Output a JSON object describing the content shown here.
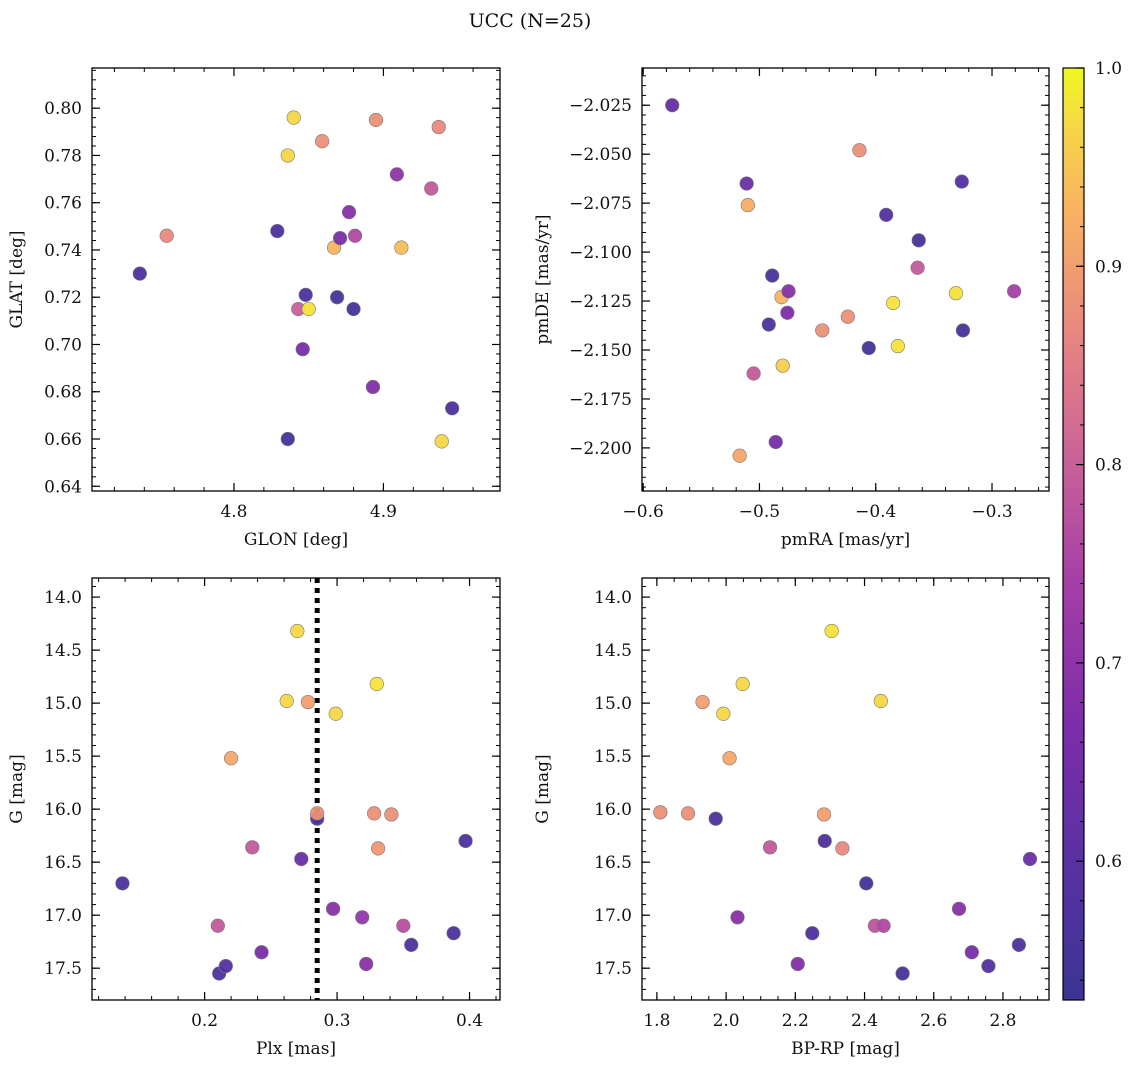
{
  "title": "UCC (N=25)",
  "colorbar": {
    "min": 0.53,
    "max": 1.0,
    "ticks": [
      "0.6",
      "0.7",
      "0.8",
      "0.9",
      "1.0"
    ],
    "colormap": "plasma"
  },
  "chart_data": [
    {
      "type": "scatter",
      "xlabel": "GLON [deg]",
      "ylabel": "GLAT [deg]",
      "xlim": [
        4.705,
        4.978
      ],
      "ylim": [
        0.638,
        0.817
      ],
      "xticks": [
        "4.8",
        "4.9"
      ],
      "yticks": [
        "0.64",
        "0.66",
        "0.68",
        "0.70",
        "0.72",
        "0.74",
        "0.76",
        "0.78",
        "0.80"
      ],
      "points": [
        {
          "x": 4.737,
          "y": 0.73,
          "c": 0.57
        },
        {
          "x": 4.755,
          "y": 0.746,
          "c": 0.87
        },
        {
          "x": 4.829,
          "y": 0.748,
          "c": 0.57
        },
        {
          "x": 4.836,
          "y": 0.66,
          "c": 0.55
        },
        {
          "x": 4.836,
          "y": 0.78,
          "c": 0.97
        },
        {
          "x": 4.84,
          "y": 0.796,
          "c": 0.97
        },
        {
          "x": 4.843,
          "y": 0.715,
          "c": 0.8
        },
        {
          "x": 4.846,
          "y": 0.698,
          "c": 0.66
        },
        {
          "x": 4.848,
          "y": 0.721,
          "c": 0.57
        },
        {
          "x": 4.85,
          "y": 0.715,
          "c": 0.98
        },
        {
          "x": 4.859,
          "y": 0.786,
          "c": 0.88
        },
        {
          "x": 4.867,
          "y": 0.741,
          "c": 0.93
        },
        {
          "x": 4.869,
          "y": 0.72,
          "c": 0.56
        },
        {
          "x": 4.871,
          "y": 0.745,
          "c": 0.66
        },
        {
          "x": 4.877,
          "y": 0.756,
          "c": 0.69
        },
        {
          "x": 4.88,
          "y": 0.715,
          "c": 0.56
        },
        {
          "x": 4.881,
          "y": 0.746,
          "c": 0.76
        },
        {
          "x": 4.893,
          "y": 0.682,
          "c": 0.68
        },
        {
          "x": 4.895,
          "y": 0.795,
          "c": 0.88
        },
        {
          "x": 4.909,
          "y": 0.772,
          "c": 0.7
        },
        {
          "x": 4.912,
          "y": 0.741,
          "c": 0.94
        },
        {
          "x": 4.932,
          "y": 0.766,
          "c": 0.79
        },
        {
          "x": 4.937,
          "y": 0.792,
          "c": 0.87
        },
        {
          "x": 4.939,
          "y": 0.659,
          "c": 0.97
        },
        {
          "x": 4.946,
          "y": 0.673,
          "c": 0.57
        }
      ]
    },
    {
      "type": "scatter",
      "xlabel": "pmRA [mas/yr]",
      "ylabel": "pmDE [mas/yr]",
      "xlim": [
        -0.601,
        -0.251
      ],
      "ylim": [
        -2.222,
        -2.006
      ],
      "xticks": [
        "−0.6",
        "−0.5",
        "−0.4",
        "−0.3"
      ],
      "yticks": [
        "−2.200",
        "−2.175",
        "−2.150",
        "−2.125",
        "−2.100",
        "−2.075",
        "−2.050",
        "−2.025"
      ],
      "points": [
        {
          "x": -0.575,
          "y": -2.025,
          "c": 0.62
        },
        {
          "x": -0.517,
          "y": -2.204,
          "c": 0.91
        },
        {
          "x": -0.511,
          "y": -2.065,
          "c": 0.63
        },
        {
          "x": -0.51,
          "y": -2.076,
          "c": 0.92
        },
        {
          "x": -0.505,
          "y": -2.162,
          "c": 0.79
        },
        {
          "x": -0.492,
          "y": -2.137,
          "c": 0.57
        },
        {
          "x": -0.489,
          "y": -2.112,
          "c": 0.56
        },
        {
          "x": -0.486,
          "y": -2.197,
          "c": 0.66
        },
        {
          "x": -0.481,
          "y": -2.123,
          "c": 0.93
        },
        {
          "x": -0.48,
          "y": -2.158,
          "c": 0.96
        },
        {
          "x": -0.476,
          "y": -2.131,
          "c": 0.67
        },
        {
          "x": -0.475,
          "y": -2.12,
          "c": 0.69
        },
        {
          "x": -0.446,
          "y": -2.14,
          "c": 0.88
        },
        {
          "x": -0.424,
          "y": -2.133,
          "c": 0.88
        },
        {
          "x": -0.414,
          "y": -2.048,
          "c": 0.88
        },
        {
          "x": -0.406,
          "y": -2.149,
          "c": 0.55
        },
        {
          "x": -0.391,
          "y": -2.081,
          "c": 0.58
        },
        {
          "x": -0.385,
          "y": -2.126,
          "c": 0.98
        },
        {
          "x": -0.381,
          "y": -2.148,
          "c": 0.98
        },
        {
          "x": -0.364,
          "y": -2.108,
          "c": 0.79
        },
        {
          "x": -0.363,
          "y": -2.094,
          "c": 0.56
        },
        {
          "x": -0.331,
          "y": -2.121,
          "c": 0.98
        },
        {
          "x": -0.326,
          "y": -2.064,
          "c": 0.58
        },
        {
          "x": -0.325,
          "y": -2.14,
          "c": 0.56
        },
        {
          "x": -0.281,
          "y": -2.12,
          "c": 0.74
        }
      ]
    },
    {
      "type": "scatter",
      "xlabel": "Plx [mas]",
      "ylabel": "G [mag]",
      "xlim": [
        0.115,
        0.423
      ],
      "ylim": [
        17.8,
        13.82
      ],
      "y_inverted": true,
      "xticks": [
        "0.2",
        "0.3",
        "0.4"
      ],
      "yticks": [
        "14.0",
        "14.5",
        "15.0",
        "15.5",
        "16.0",
        "16.5",
        "17.0",
        "17.5"
      ],
      "vline": 0.285,
      "points": [
        {
          "x": 0.138,
          "y": 16.7,
          "c": 0.57
        },
        {
          "x": 0.21,
          "y": 17.1,
          "c": 0.79
        },
        {
          "x": 0.211,
          "y": 17.55,
          "c": 0.57
        },
        {
          "x": 0.216,
          "y": 17.48,
          "c": 0.58
        },
        {
          "x": 0.22,
          "y": 15.52,
          "c": 0.91
        },
        {
          "x": 0.236,
          "y": 16.36,
          "c": 0.79
        },
        {
          "x": 0.243,
          "y": 17.35,
          "c": 0.66
        },
        {
          "x": 0.262,
          "y": 14.98,
          "c": 0.97
        },
        {
          "x": 0.27,
          "y": 14.32,
          "c": 0.97
        },
        {
          "x": 0.273,
          "y": 16.47,
          "c": 0.63
        },
        {
          "x": 0.278,
          "y": 14.99,
          "c": 0.9
        },
        {
          "x": 0.285,
          "y": 16.09,
          "c": 0.57
        },
        {
          "x": 0.285,
          "y": 16.04,
          "c": 0.88
        },
        {
          "x": 0.299,
          "y": 15.1,
          "c": 0.97
        },
        {
          "x": 0.297,
          "y": 16.94,
          "c": 0.69
        },
        {
          "x": 0.319,
          "y": 17.02,
          "c": 0.71
        },
        {
          "x": 0.322,
          "y": 17.46,
          "c": 0.69
        },
        {
          "x": 0.328,
          "y": 16.04,
          "c": 0.88
        },
        {
          "x": 0.33,
          "y": 14.82,
          "c": 0.98
        },
        {
          "x": 0.331,
          "y": 16.37,
          "c": 0.89
        },
        {
          "x": 0.341,
          "y": 16.05,
          "c": 0.88
        },
        {
          "x": 0.35,
          "y": 17.1,
          "c": 0.77
        },
        {
          "x": 0.356,
          "y": 17.28,
          "c": 0.57
        },
        {
          "x": 0.388,
          "y": 17.17,
          "c": 0.57
        },
        {
          "x": 0.397,
          "y": 16.3,
          "c": 0.57
        }
      ]
    },
    {
      "type": "scatter",
      "xlabel": "BP-RP [mag]",
      "ylabel": "G [mag]",
      "xlim": [
        1.757,
        2.933
      ],
      "ylim": [
        17.8,
        13.82
      ],
      "y_inverted": true,
      "xticks": [
        "1.8",
        "2.0",
        "2.2",
        "2.4",
        "2.6",
        "2.8"
      ],
      "yticks": [
        "14.0",
        "14.5",
        "15.0",
        "15.5",
        "16.0",
        "16.5",
        "17.0",
        "17.5"
      ],
      "points": [
        {
          "x": 1.81,
          "y": 16.03,
          "c": 0.88
        },
        {
          "x": 1.89,
          "y": 16.04,
          "c": 0.88
        },
        {
          "x": 1.932,
          "y": 14.99,
          "c": 0.9
        },
        {
          "x": 1.97,
          "y": 16.09,
          "c": 0.57
        },
        {
          "x": 1.992,
          "y": 15.1,
          "c": 0.97
        },
        {
          "x": 2.01,
          "y": 15.52,
          "c": 0.91
        },
        {
          "x": 2.033,
          "y": 17.02,
          "c": 0.69
        },
        {
          "x": 2.048,
          "y": 14.82,
          "c": 0.97
        },
        {
          "x": 2.127,
          "y": 16.36,
          "c": 0.79
        },
        {
          "x": 2.207,
          "y": 17.46,
          "c": 0.68
        },
        {
          "x": 2.249,
          "y": 17.17,
          "c": 0.57
        },
        {
          "x": 2.283,
          "y": 16.05,
          "c": 0.9
        },
        {
          "x": 2.285,
          "y": 16.3,
          "c": 0.57
        },
        {
          "x": 2.305,
          "y": 14.32,
          "c": 0.98
        },
        {
          "x": 2.336,
          "y": 16.37,
          "c": 0.87
        },
        {
          "x": 2.405,
          "y": 16.7,
          "c": 0.55
        },
        {
          "x": 2.43,
          "y": 17.1,
          "c": 0.78
        },
        {
          "x": 2.447,
          "y": 14.98,
          "c": 0.97
        },
        {
          "x": 2.455,
          "y": 17.1,
          "c": 0.76
        },
        {
          "x": 2.51,
          "y": 17.55,
          "c": 0.56
        },
        {
          "x": 2.673,
          "y": 16.94,
          "c": 0.69
        },
        {
          "x": 2.71,
          "y": 17.35,
          "c": 0.66
        },
        {
          "x": 2.758,
          "y": 17.48,
          "c": 0.58
        },
        {
          "x": 2.846,
          "y": 17.28,
          "c": 0.57
        },
        {
          "x": 2.878,
          "y": 16.47,
          "c": 0.63
        }
      ]
    }
  ]
}
